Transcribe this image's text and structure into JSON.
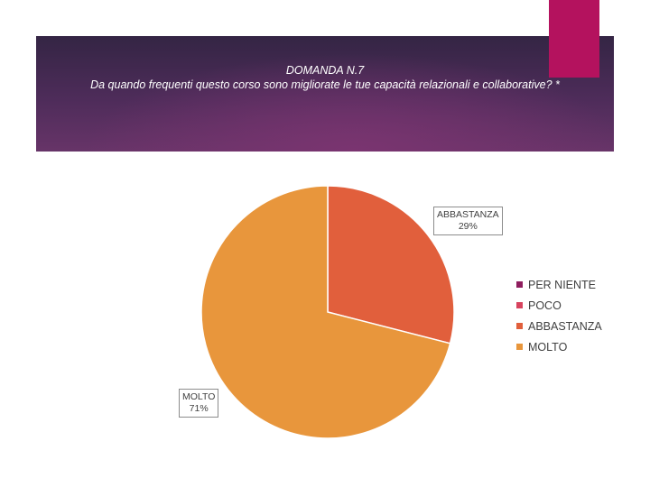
{
  "header": {
    "title_line1": "DOMANDA N.7",
    "title_line2": "Da quando frequenti questo corso sono migliorate le tue capacità relazionali e collaborative? *",
    "band_color": "#4e2c5a",
    "accent_color": "#b4125e"
  },
  "chart_data": {
    "type": "pie",
    "title": "DOMANDA N.7 Da quando frequenti questo corso sono migliorate le tue capacità relazionali e collaborative? *",
    "categories": [
      "PER NIENTE",
      "POCO",
      "ABBASTANZA",
      "MOLTO"
    ],
    "values": [
      0,
      0,
      29,
      71
    ],
    "colors": [
      "#8e1d5e",
      "#d7435e",
      "#e15f3c",
      "#e8963c"
    ],
    "data_labels": [
      {
        "category": "ABBASTANZA",
        "value": "29%"
      },
      {
        "category": "MOLTO",
        "value": "71%"
      }
    ],
    "legend_position": "right"
  }
}
